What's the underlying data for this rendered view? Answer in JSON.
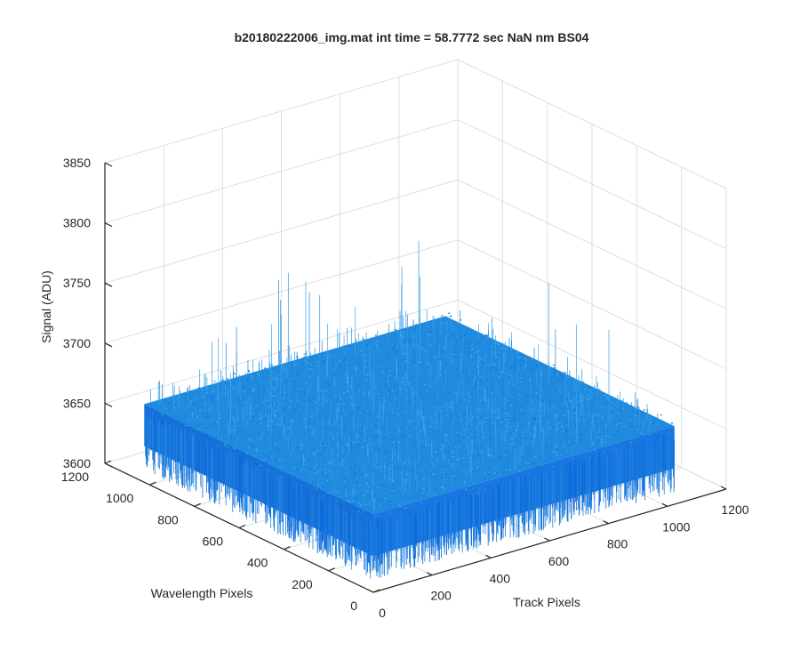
{
  "chart_data": {
    "type": "surface",
    "title": "b20180222006_img.mat int time = 58.7772 sec  NaN nm BS04",
    "xlabel": "Track Pixels",
    "ylabel": "Wavelength Pixels",
    "zlabel": "Signal (ADU)",
    "xlim": [
      0,
      1200
    ],
    "ylim": [
      0,
      1200
    ],
    "zlim": [
      3600,
      3850
    ],
    "x_ticks": [
      "0",
      "200",
      "400",
      "600",
      "800",
      "1000",
      "1200"
    ],
    "y_ticks": [
      "0",
      "200",
      "400",
      "600",
      "800",
      "1000",
      "1200"
    ],
    "z_ticks": [
      "3600",
      "3650",
      "3700",
      "3750",
      "3800",
      "3850"
    ],
    "grid": true,
    "surface": {
      "x_range": [
        0,
        1024
      ],
      "y_range": [
        0,
        1024
      ],
      "mean_signal": 3665,
      "min_signal": 3630,
      "max_signal": 3760,
      "colormap_low": "#0a63d8",
      "colormap_high": "#3fb4e8"
    }
  },
  "colors": {
    "axis": "#262626",
    "grid": "#dedede",
    "surface_mid": "#1f8ade"
  }
}
